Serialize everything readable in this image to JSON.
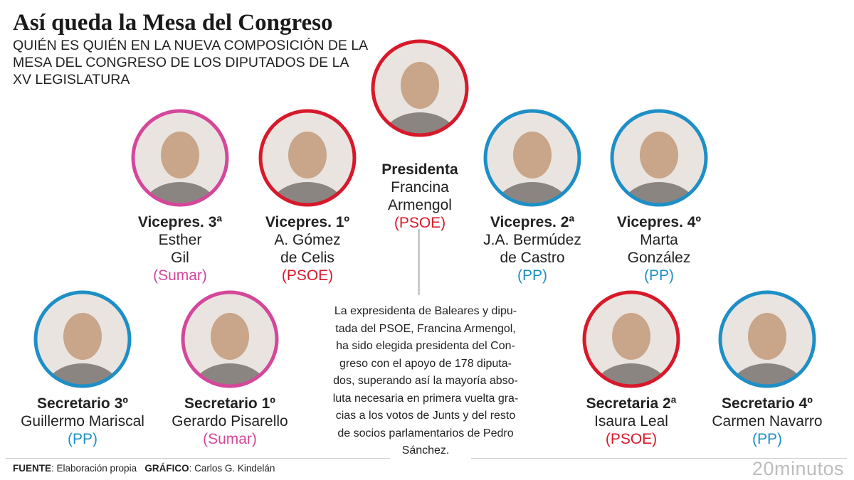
{
  "header": {
    "title": "Así queda la Mesa del Congreso",
    "subtitle": "QUIÉN ES QUIÉN EN LA NUEVA COMPOSICIÓN DE LA MESA DEL CONGRESO DE LOS DIPUTADOS DE LA XV LEGISLATURA"
  },
  "members": [
    {
      "role": "Presidenta",
      "name_lines": [
        "Francina",
        "Armengol"
      ],
      "party": "(PSOE)",
      "color": "#d7192b"
    },
    {
      "role": "Vicepres. 3ª",
      "name_lines": [
        "Esther",
        "Gil"
      ],
      "party": "(Sumar)",
      "color": "#d4479a"
    },
    {
      "role": "Vicepres. 1º",
      "name_lines": [
        "A. Gómez",
        "de Celis"
      ],
      "party": "(PSOE)",
      "color": "#d7192b"
    },
    {
      "role": "Vicepres. 2ª",
      "name_lines": [
        "J.A. Bermúdez",
        "de Castro"
      ],
      "party": "(PP)",
      "color": "#1e8fc6"
    },
    {
      "role": "Vicepres. 4º",
      "name_lines": [
        "Marta",
        "González"
      ],
      "party": "(PP)",
      "color": "#1e8fc6"
    },
    {
      "role": "Secretario 3º",
      "name_lines": [
        "Guillermo Mariscal"
      ],
      "party": "(PP)",
      "color": "#1e8fc6"
    },
    {
      "role": "Secretario 1º",
      "name_lines": [
        "Gerardo Pisarello"
      ],
      "party": "(Sumar)",
      "color": "#d4479a"
    },
    {
      "role": "Secretaria 2ª",
      "name_lines": [
        "Isaura Leal"
      ],
      "party": "(PSOE)",
      "color": "#d7192b"
    },
    {
      "role": "Secretario 4º",
      "name_lines": [
        "Carmen Navarro"
      ],
      "party": "(PP)",
      "color": "#1e8fc6"
    }
  ],
  "paragraph_lines": [
    "La expresidenta de Baleares y dipu-",
    "tada del PSOE, Francina Armengol,",
    "ha sido elegida presidenta del Con-",
    "greso con el apoyo de 178 diputa-",
    "dos, superando así la mayoría abso-",
    "luta necesaria en primera vuelta gra-",
    "cias a los votos de Junts y del resto",
    "de socios parlamentarios de Pedro",
    "Sánchez."
  ],
  "footer": {
    "source_label": "FUENTE",
    "source": ": Elaboración propia",
    "graphic_label": "GRÁFICO",
    "graphic": ": Carlos G. Kindelán",
    "logo": "20minutos"
  }
}
